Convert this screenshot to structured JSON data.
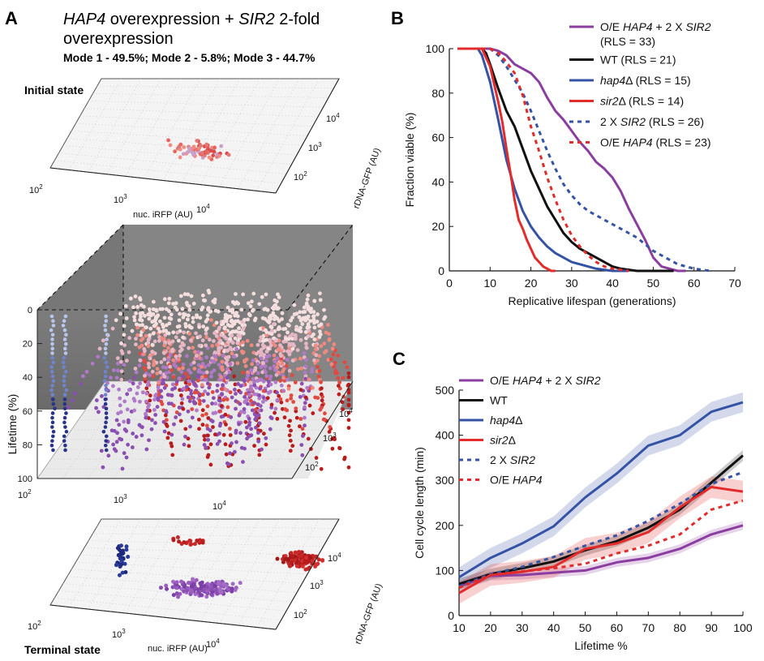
{
  "panels": {
    "a": {
      "letter": "A",
      "title_line1_part1": "HAP4",
      "title_line1_part2": " overexpression + ",
      "title_line1_part3": "SIR2",
      "title_line1_part4": " 2-fold",
      "title_line2": "overexpression",
      "subtitle": "Mode 1 - 49.5%; Mode 2 - 5.8%; Mode 3 - 44.7%",
      "initial_label": "Initial state",
      "terminal_label": "Terminal state",
      "x_axis_label": "nuc. iRFP (AU)",
      "y_axis_label": "rDNA-GFP (AU)",
      "z_axis_label": "Lifetime (%)",
      "x_ticks": [
        {
          "base": "10",
          "exp": "2"
        },
        {
          "base": "10",
          "exp": "3"
        },
        {
          "base": "10",
          "exp": "4"
        }
      ],
      "y_ticks": [
        {
          "base": "10",
          "exp": "2"
        },
        {
          "base": "10",
          "exp": "3"
        },
        {
          "base": "10",
          "exp": "4"
        }
      ],
      "z_ticks": [
        "0",
        "20",
        "40",
        "60",
        "80",
        "100"
      ]
    },
    "b": {
      "letter": "B"
    },
    "c": {
      "letter": "C"
    }
  },
  "chart_data": [
    {
      "panel": "B",
      "type": "line",
      "xlabel": "Replicative lifespan (generations)",
      "ylabel": "Fraction viable (%)",
      "xlim": [
        0,
        70
      ],
      "ylim": [
        0,
        100
      ],
      "xticks": [
        0,
        10,
        20,
        30,
        40,
        50,
        60,
        70
      ],
      "yticks": [
        0,
        20,
        40,
        60,
        80,
        100
      ],
      "grid": false,
      "legend_position": "top-right",
      "series": [
        {
          "name_parts": [
            "O/E ",
            "HAP4",
            " + 2 X ",
            "SIR2"
          ],
          "italic": [
            false,
            true,
            false,
            true
          ],
          "rls": "(RLS = 33)",
          "color": "#8b3ea0",
          "dash": false,
          "x": [
            2,
            8,
            10,
            12,
            14,
            16,
            18,
            20,
            22,
            24,
            26,
            28,
            30,
            32,
            34,
            36,
            38,
            40,
            42,
            44,
            46,
            48,
            50,
            52,
            54,
            56,
            58
          ],
          "y": [
            100,
            100,
            100,
            99,
            97,
            93,
            91,
            89,
            85,
            78,
            72,
            68,
            63,
            58,
            54,
            49,
            46,
            42,
            36,
            28,
            21,
            14,
            6,
            2,
            1,
            0,
            0
          ]
        },
        {
          "name_parts": [
            "WT  (RLS = 21)"
          ],
          "italic": [
            false
          ],
          "color": "#111111",
          "dash": false,
          "x": [
            2,
            8,
            9,
            10,
            12,
            14,
            16,
            18,
            20,
            22,
            24,
            26,
            28,
            30,
            32,
            34,
            36,
            38,
            40,
            42,
            44,
            46,
            50,
            55
          ],
          "y": [
            100,
            100,
            98,
            93,
            82,
            72,
            65,
            55,
            45,
            37,
            29,
            23,
            17,
            13,
            10,
            8,
            6,
            4,
            2,
            1,
            0.5,
            0,
            0,
            0
          ]
        },
        {
          "name_parts": [
            "hap4",
            "Δ  (RLS = 15)"
          ],
          "italic": [
            true,
            false
          ],
          "color": "#3553a5",
          "dash": false,
          "x": [
            2,
            7,
            8,
            10,
            12,
            14,
            16,
            18,
            20,
            22,
            24,
            26,
            28,
            30,
            32,
            34,
            36,
            38,
            40,
            42,
            44
          ],
          "y": [
            100,
            100,
            97,
            85,
            68,
            50,
            37,
            27,
            20,
            15,
            11,
            8,
            6,
            4,
            3,
            2,
            1,
            0.5,
            0,
            0,
            0
          ]
        },
        {
          "name_parts": [
            "sir2",
            "Δ  (RLS = 14)"
          ],
          "italic": [
            true,
            false
          ],
          "color": "#e32b2b",
          "dash": false,
          "x": [
            2,
            8,
            10,
            12,
            13,
            14,
            15,
            16,
            17,
            18,
            19,
            20,
            21,
            22,
            23,
            24,
            25,
            26
          ],
          "y": [
            100,
            100,
            92,
            76,
            67,
            55,
            44,
            32,
            23,
            19,
            14,
            10,
            6,
            4,
            2,
            1,
            0,
            0
          ]
        },
        {
          "name_parts": [
            "2 X ",
            "SIR2",
            "  (RLS = 26)"
          ],
          "italic": [
            false,
            true,
            false
          ],
          "color": "#3553a5",
          "dash": true,
          "x": [
            2,
            10,
            12,
            14,
            16,
            18,
            20,
            22,
            24,
            26,
            28,
            30,
            32,
            34,
            36,
            38,
            40,
            42,
            44,
            46,
            48,
            50,
            52,
            54,
            56,
            58,
            60,
            62,
            64
          ],
          "y": [
            100,
            100,
            97,
            92,
            86,
            80,
            72,
            63,
            54,
            46,
            39,
            34,
            30,
            27,
            25,
            23,
            21,
            19,
            17,
            15,
            12,
            9,
            7,
            5,
            3,
            2,
            1,
            0.5,
            0
          ]
        },
        {
          "name_parts": [
            "O/E ",
            "HAP4",
            "  (RLS = 23)"
          ],
          "italic": [
            false,
            true,
            false
          ],
          "color": "#e32b2b",
          "dash": true,
          "x": [
            2,
            10,
            12,
            14,
            16,
            18,
            20,
            22,
            24,
            26,
            28,
            30,
            32,
            34,
            36,
            38,
            40,
            42,
            44
          ],
          "y": [
            100,
            100,
            98,
            94,
            89,
            79,
            65,
            54,
            42,
            32,
            23,
            16,
            11,
            7,
            4,
            2,
            1,
            0.5,
            0
          ]
        }
      ]
    },
    {
      "panel": "C",
      "type": "line",
      "xlabel": "Lifetime %",
      "ylabel": "Cell cycle length (min)",
      "xlim": [
        10,
        100
      ],
      "ylim": [
        0,
        500
      ],
      "xticks": [
        10,
        20,
        30,
        40,
        50,
        60,
        70,
        80,
        90,
        100
      ],
      "yticks": [
        0,
        100,
        200,
        300,
        400,
        500
      ],
      "grid": false,
      "legend_position": "top-left",
      "x": [
        10,
        20,
        30,
        40,
        50,
        60,
        70,
        80,
        90,
        100
      ],
      "series": [
        {
          "name_parts": [
            "O/E ",
            "HAP4",
            " + 2 X ",
            "SIR2"
          ],
          "italic": [
            false,
            true,
            false,
            true
          ],
          "color": "#8b3ea0",
          "dash": false,
          "values": [
            65,
            88,
            90,
            95,
            100,
            118,
            128,
            148,
            180,
            200
          ],
          "band": 10
        },
        {
          "name_parts": [
            "WT"
          ],
          "italic": [
            false
          ],
          "color": "#111111",
          "dash": false,
          "values": [
            70,
            92,
            105,
            120,
            145,
            165,
            195,
            235,
            295,
            355
          ],
          "band": 12
        },
        {
          "name_parts": [
            "hap4",
            "Δ"
          ],
          "italic": [
            true,
            false
          ],
          "color": "#3553a5",
          "dash": false,
          "values": [
            85,
            128,
            160,
            198,
            262,
            315,
            377,
            400,
            452,
            473
          ],
          "band": 22
        },
        {
          "name_parts": [
            "sir2",
            "Δ"
          ],
          "italic": [
            true,
            false
          ],
          "color": "#e32b2b",
          "dash": false,
          "values": [
            50,
            90,
            97,
            108,
            148,
            160,
            185,
            240,
            285,
            275
          ],
          "band": 24
        },
        {
          "name_parts": [
            "2 X ",
            "SIR2"
          ],
          "italic": [
            false,
            true
          ],
          "color": "#3553a5",
          "dash": true,
          "values": [
            65,
            92,
            108,
            130,
            155,
            178,
            210,
            248,
            292,
            318
          ],
          "band": 0
        },
        {
          "name_parts": [
            "O/E ",
            "HAP4"
          ],
          "italic": [
            false,
            true
          ],
          "color": "#e32b2b",
          "dash": true,
          "values": [
            62,
            90,
            98,
            105,
            115,
            138,
            155,
            180,
            235,
            255
          ],
          "band": 0
        }
      ]
    }
  ]
}
